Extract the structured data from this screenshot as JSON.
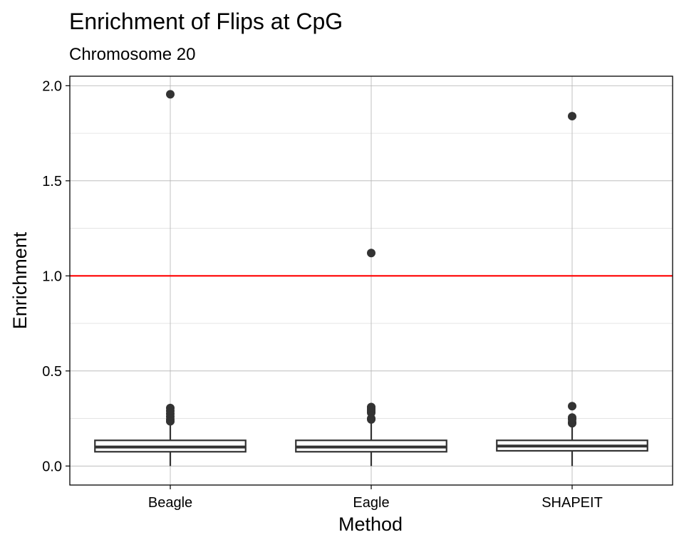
{
  "chart_data": {
    "type": "boxplot",
    "title": "Enrichment of Flips at CpG",
    "subtitle": "Chromosome 20",
    "xlabel": "Method",
    "ylabel": "Enrichment",
    "categories": [
      "Beagle",
      "Eagle",
      "SHAPEIT"
    ],
    "ylim": [
      -0.1,
      2.05
    ],
    "yticks": [
      0.0,
      0.5,
      1.0,
      1.5,
      2.0
    ],
    "ytick_labels": [
      "0.0",
      "0.5",
      "1.0",
      "1.5",
      "2.0"
    ],
    "reference_line": {
      "y": 1.0,
      "color": "#ff0000"
    },
    "grid": true,
    "boxes": [
      {
        "category": "Beagle",
        "min": 0.0,
        "q1": 0.075,
        "median": 0.1,
        "q3": 0.135,
        "max": 0.22,
        "outliers": [
          0.235,
          0.245,
          0.26,
          0.275,
          0.29,
          0.305,
          1.955
        ]
      },
      {
        "category": "Eagle",
        "min": 0.0,
        "q1": 0.075,
        "median": 0.1,
        "q3": 0.135,
        "max": 0.235,
        "outliers": [
          0.245,
          0.25,
          0.28,
          0.29,
          0.3,
          0.31,
          1.12
        ]
      },
      {
        "category": "SHAPEIT",
        "min": 0.0,
        "q1": 0.08,
        "median": 0.105,
        "q3": 0.135,
        "max": 0.21,
        "outliers": [
          0.225,
          0.23,
          0.245,
          0.255,
          0.315,
          1.84
        ]
      }
    ],
    "colors": {
      "box": "#333333",
      "point": "#333333",
      "grid_major": "#b3b3b3",
      "grid_minor": "#e0e0e0"
    }
  }
}
